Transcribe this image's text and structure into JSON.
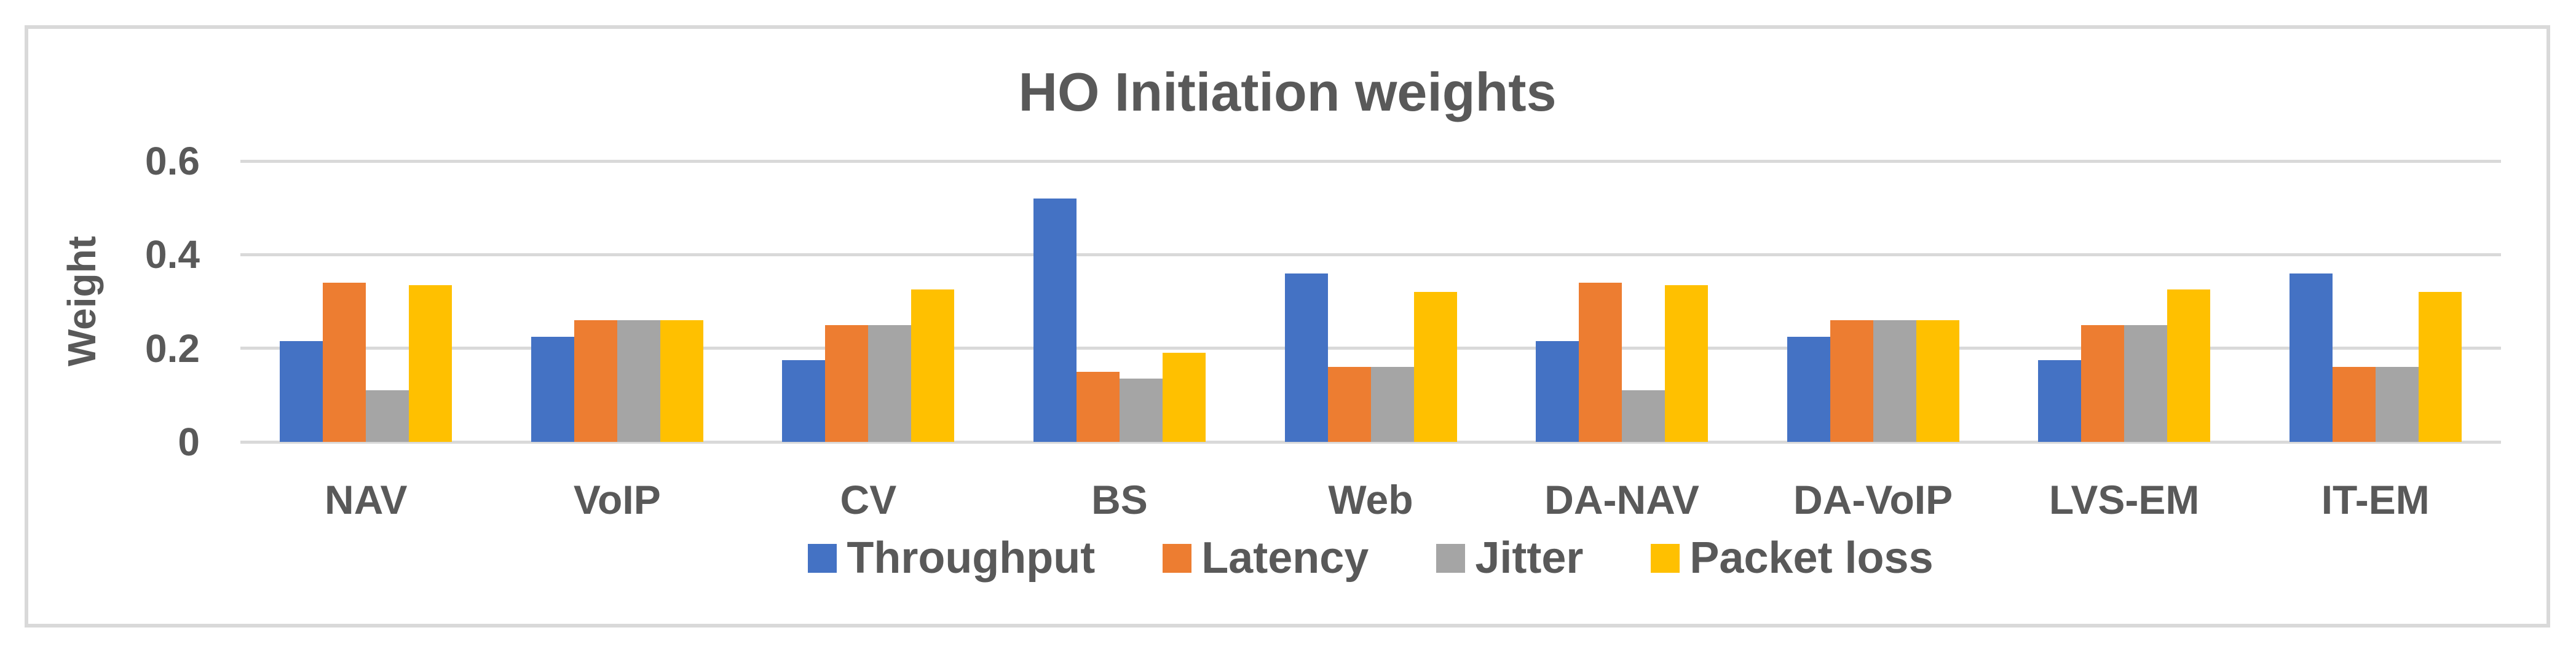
{
  "title": "HO Initiation weights",
  "y_axis": {
    "label": "Weight",
    "ticks": [
      {
        "value": 0,
        "label": "0"
      },
      {
        "value": 0.2,
        "label": "0.2"
      },
      {
        "value": 0.4,
        "label": "0.4"
      },
      {
        "value": 0.6,
        "label": "0.6"
      }
    ]
  },
  "colors": {
    "text": "#595959",
    "gridline": "#D9D9D9",
    "frame_border": "#D9D9D9",
    "background": "#FFFFFF"
  },
  "chart_data": {
    "type": "bar",
    "title": "HO Initiation weights",
    "xlabel": "",
    "ylabel": "Weight",
    "ylim": [
      0,
      0.6
    ],
    "ytick_step": 0.2,
    "grid": true,
    "legend_position": "bottom",
    "categories": [
      "NAV",
      "VoIP",
      "CV",
      "BS",
      "Web",
      "DA-NAV",
      "DA-VoIP",
      "LVS-EM",
      "IT-EM"
    ],
    "series": [
      {
        "name": "Throughput",
        "color": "#4472C4",
        "values": [
          0.215,
          0.225,
          0.175,
          0.52,
          0.36,
          0.215,
          0.225,
          0.175,
          0.36
        ]
      },
      {
        "name": "Latency",
        "color": "#ED7D31",
        "values": [
          0.34,
          0.26,
          0.25,
          0.15,
          0.16,
          0.34,
          0.26,
          0.25,
          0.16
        ]
      },
      {
        "name": "Jitter",
        "color": "#A5A5A5",
        "values": [
          0.11,
          0.26,
          0.25,
          0.135,
          0.16,
          0.11,
          0.26,
          0.25,
          0.16
        ]
      },
      {
        "name": "Packet loss",
        "color": "#FFC000",
        "values": [
          0.335,
          0.26,
          0.325,
          0.19,
          0.32,
          0.335,
          0.26,
          0.325,
          0.32
        ]
      }
    ]
  }
}
